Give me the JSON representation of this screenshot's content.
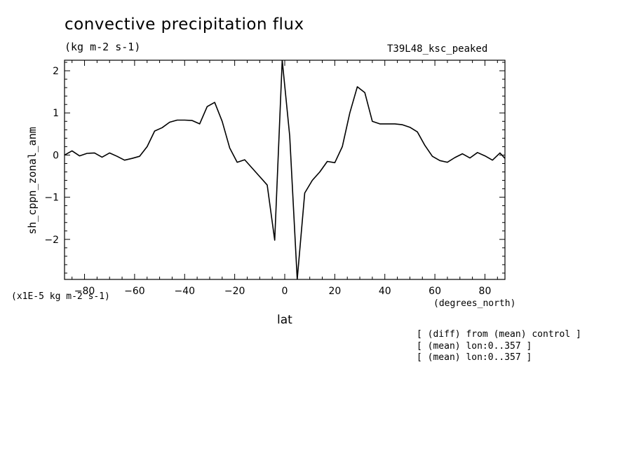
{
  "chart_data": {
    "type": "line",
    "title": "convective precipitation flux",
    "subtitle": "(kg m-2 s-1)",
    "run_label": "T39L48_ksc_peaked",
    "xlabel": "lat",
    "xunits": "(degrees_north)",
    "ylabel": "sh_cppn_zonal_anm",
    "yunits": "(x1E-5 kg m-2 s-1)",
    "xlim": [
      -88,
      88
    ],
    "ylim": [
      -2.95,
      2.25
    ],
    "xticks": [
      -80,
      -60,
      -40,
      -20,
      0,
      20,
      40,
      60,
      80
    ],
    "yticks": [
      -2,
      -1,
      0,
      1,
      2
    ],
    "grid": false,
    "series": [
      {
        "x": [
          -88,
          -85,
          -82,
          -79,
          -76,
          -73,
          -70,
          -67,
          -64,
          -61,
          -58,
          -55,
          -52,
          -49,
          -46,
          -43,
          -40,
          -37,
          -34,
          -31,
          -28,
          -25,
          -22,
          -19,
          -16,
          -13,
          -10,
          -7,
          -4,
          -1,
          2,
          5,
          8,
          11,
          14,
          17,
          20,
          23,
          26,
          29,
          32,
          35,
          38,
          41,
          44,
          47,
          50,
          53,
          56,
          59,
          62,
          65,
          68,
          71,
          74,
          77,
          80,
          83,
          86,
          88
        ],
        "y": [
          0.0,
          0.1,
          -0.02,
          0.04,
          0.05,
          -0.05,
          0.05,
          -0.03,
          -0.12,
          -0.08,
          -0.03,
          0.2,
          0.57,
          0.65,
          0.78,
          0.83,
          0.83,
          0.82,
          0.74,
          1.15,
          1.25,
          0.8,
          0.17,
          -0.17,
          -0.11,
          -0.31,
          -0.51,
          -0.71,
          -2.02,
          2.25,
          0.45,
          -2.95,
          -0.9,
          -0.6,
          -0.4,
          -0.15,
          -0.18,
          0.2,
          1.0,
          1.62,
          1.48,
          0.8,
          0.74,
          0.74,
          0.74,
          0.72,
          0.66,
          0.55,
          0.23,
          -0.03,
          -0.13,
          -0.17,
          -0.06,
          0.03,
          -0.07,
          0.06,
          -0.02,
          -0.12,
          0.05,
          -0.08
        ]
      }
    ],
    "notes": [
      "[ (diff) from (mean) control ]",
      "[ (mean) lon:0..357 ]",
      "[ (mean) lon:0..357 ]"
    ]
  }
}
